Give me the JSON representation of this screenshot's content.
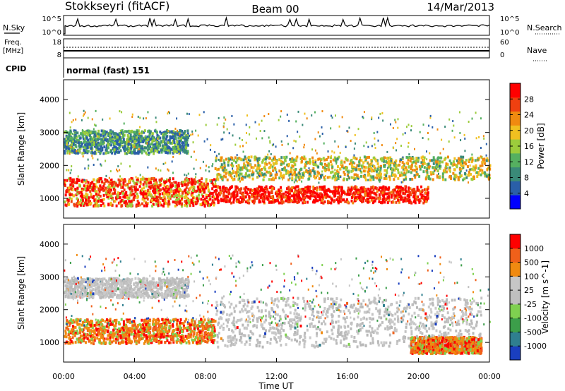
{
  "header": {
    "station": "Stokkseyri (fitACF)",
    "beam": "Beam 00",
    "date": "14/Mar/2013"
  },
  "top_panels": {
    "nsky_label": "N.Sky",
    "nsky_axis": [
      "10^5",
      "10^0"
    ],
    "nsearch_label": "N.Search",
    "nsearch_axis": [
      "10^5",
      "10^0"
    ],
    "freq_label": "Freq.",
    "freq_unit": "[MHz]",
    "freq_axis": [
      "18",
      "8"
    ],
    "nave_label": "Nave",
    "nave_axis": [
      "60",
      "0"
    ],
    "cpid_label": "CPID",
    "cpid_value": "normal (fast) 151"
  },
  "chart_data": [
    {
      "type": "heatmap",
      "panel": "power",
      "ylabel": "Slant Range [km]",
      "xlabel": "Time UT",
      "x_ticks": [
        "00:00",
        "04:00",
        "08:00",
        "12:00",
        "16:00",
        "20:00",
        "00:00"
      ],
      "y_ticks": [
        1000,
        2000,
        3000,
        4000
      ],
      "ylim": [
        400,
        4600
      ],
      "colorbar": {
        "label": "Power [dB]",
        "ticks": [
          "28",
          "24",
          "20",
          "16",
          "12",
          "8",
          "4"
        ],
        "colors": [
          "#0000ff",
          "#2a5fa8",
          "#3a8a78",
          "#55b060",
          "#9ccc3c",
          "#f0c020",
          "#f08a10",
          "#ef4010",
          "#ff0000"
        ]
      },
      "bands": [
        {
          "range_km": [
            800,
            1650
          ],
          "time_h": [
            0,
            8.5
          ],
          "level": "high"
        },
        {
          "range_km": [
            900,
            1400
          ],
          "time_h": [
            8.5,
            20.5
          ],
          "level": "very-high"
        },
        {
          "range_km": [
            1600,
            2300
          ],
          "time_h": [
            8.5,
            24
          ],
          "level": "medium"
        },
        {
          "range_km": [
            2400,
            3100
          ],
          "time_h": [
            0,
            7
          ],
          "level": "low"
        }
      ]
    },
    {
      "type": "heatmap",
      "panel": "velocity",
      "ylabel": "Slant Range [km]",
      "xlabel": "Time UT",
      "x_ticks": [
        "00:00",
        "04:00",
        "08:00",
        "12:00",
        "16:00",
        "20:00",
        "00:00"
      ],
      "y_ticks": [
        1000,
        2000,
        3000,
        4000
      ],
      "ylim": [
        400,
        4600
      ],
      "colorbar": {
        "label": "Velocity [m s^-1]",
        "ticks": [
          "1000",
          "500",
          "100",
          "25",
          "-25",
          "-100",
          "-500",
          "-1000"
        ],
        "colors": [
          "#1a3fbf",
          "#2f7f8f",
          "#3c9e4a",
          "#7fd050",
          "#bfbfbf",
          "#c6c6c6",
          "#f08a10",
          "#f0601a",
          "#ff0000"
        ]
      }
    }
  ]
}
